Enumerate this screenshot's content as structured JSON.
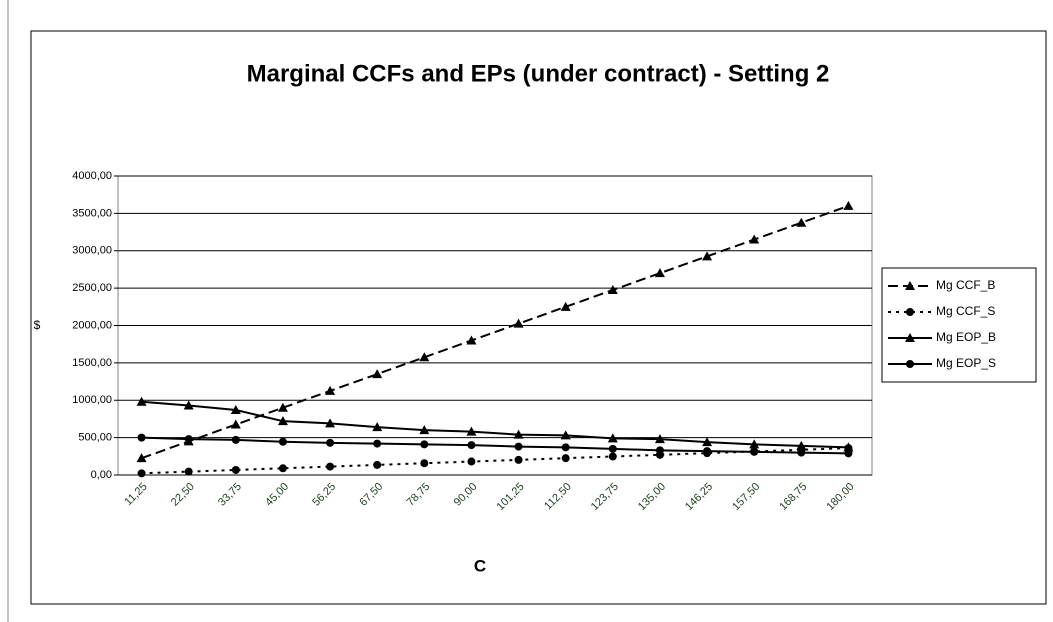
{
  "chart_data": {
    "type": "line",
    "title": "Marginal CCFs and EPs (under contract) - Setting 2",
    "x_label": "C",
    "y_label": "$",
    "categories": [
      "11,25",
      "22,50",
      "33,75",
      "45,00",
      "56,25",
      "67,50",
      "78,75",
      "90,00",
      "101,25",
      "112,50",
      "123,75",
      "135,00",
      "146,25",
      "157,50",
      "168,75",
      "180,00"
    ],
    "series": [
      {
        "name": "Mg CCF_B",
        "color": "#000000",
        "line_style": "dash",
        "marker": "triangle",
        "values": [
          225,
          450,
          675,
          900,
          1125,
          1350,
          1575,
          1800,
          2025,
          2250,
          2475,
          2700,
          2925,
          3150,
          3375,
          3600
        ]
      },
      {
        "name": "Mg CCF_S",
        "color": "#000000",
        "line_style": "dot",
        "marker": "circle",
        "values": [
          22.5,
          45,
          67.5,
          90,
          112.5,
          135,
          157.5,
          180,
          202.5,
          225,
          247.5,
          270,
          292.5,
          315,
          337.5,
          360
        ]
      },
      {
        "name": "Mg EOP_B",
        "color": "#000000",
        "line_style": "solid",
        "marker": "triangle",
        "values": [
          980,
          930,
          870,
          720,
          690,
          640,
          600,
          580,
          540,
          530,
          490,
          480,
          440,
          410,
          390,
          370
        ]
      },
      {
        "name": "Mg EOP_S",
        "color": "#000000",
        "line_style": "solid",
        "marker": "circle",
        "values": [
          500,
          480,
          470,
          445,
          430,
          420,
          410,
          400,
          380,
          370,
          350,
          330,
          320,
          310,
          300,
          290
        ]
      }
    ],
    "ylim": [
      0,
      4000
    ],
    "yticks": [
      {
        "value": 0,
        "label": "0,00"
      },
      {
        "value": 500,
        "label": "500,00"
      },
      {
        "value": 1000,
        "label": "1000,00"
      },
      {
        "value": 1500,
        "label": "1500,00"
      },
      {
        "value": 2000,
        "label": "2000,00"
      },
      {
        "value": 2500,
        "label": "2500,00"
      },
      {
        "value": 3000,
        "label": "3000,00"
      },
      {
        "value": 3500,
        "label": "3500,00"
      },
      {
        "value": 4000,
        "label": "4000,00"
      }
    ],
    "grid": true,
    "legend": "right"
  }
}
